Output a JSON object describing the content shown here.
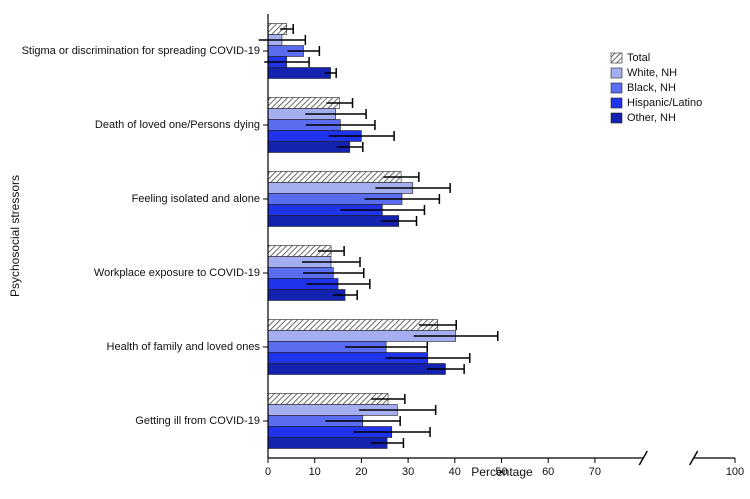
{
  "chart_data": {
    "type": "hbar",
    "categories": [
      "Stigma or discrimination for spreading COVID-19",
      "Death of loved one/Persons dying",
      "Feeling isolated and alone",
      "Workplace exposure to COVID-19",
      "Health of family and loved ones",
      "Getting ill from COVID-19"
    ],
    "series": [
      {
        "name": "Total",
        "color": "#bbbbbb",
        "pattern": "hatch",
        "values": [
          4.0,
          15.3,
          28.5,
          13.5,
          36.3,
          25.7
        ],
        "errors": [
          1.4,
          2.8,
          3.8,
          2.8,
          4.0,
          3.6
        ]
      },
      {
        "name": "White, NH",
        "color": "#a4aef0",
        "values": [
          3.0,
          14.5,
          31.0,
          13.5,
          40.2,
          27.7
        ],
        "errors": [
          5.0,
          6.5,
          8.0,
          6.2,
          9.0,
          8.2
        ]
      },
      {
        "name": "Black, NH",
        "color": "#5a6cf0",
        "values": [
          7.6,
          15.5,
          28.7,
          14.0,
          25.3,
          20.3
        ],
        "errors": [
          3.4,
          7.4,
          8.0,
          6.5,
          8.8,
          8.0
        ]
      },
      {
        "name": "Hispanic/Latino",
        "color": "#1f33ea",
        "values": [
          4.0,
          20.0,
          24.5,
          15.0,
          34.2,
          26.5
        ],
        "errors": [
          4.8,
          7.0,
          9.0,
          6.8,
          9.0,
          8.2
        ]
      },
      {
        "name": "Other, NH",
        "color": "#1323b0",
        "values": [
          13.4,
          17.5,
          28.0,
          16.5,
          38.0,
          25.5
        ],
        "errors": [
          1.2,
          2.8,
          3.8,
          2.6,
          4.0,
          3.5
        ]
      }
    ],
    "xlabel": "Percentage",
    "ylabel": "Psychosocial stressors",
    "xlim": [
      0,
      100
    ],
    "xticks": [
      0,
      10,
      20,
      30,
      40,
      50,
      60,
      70,
      100
    ],
    "axis_break": [
      75,
      95
    ],
    "legend": "upper right"
  }
}
